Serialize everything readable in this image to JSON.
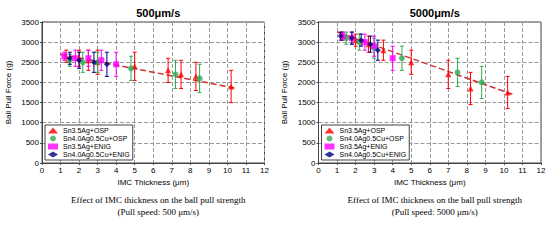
{
  "chart_data": [
    {
      "type": "scatter",
      "title": "500μm/s",
      "caption": [
        "Effect of IMC thickness on the ball pull strength",
        "(Pull speed: 500 μm/s)"
      ],
      "xlabel": "IMC Thickness (μm)",
      "ylabel": "Ball Pull Force (g)",
      "xlim": [
        0,
        12
      ],
      "xticks": [
        0,
        1,
        2,
        3,
        4,
        5,
        6,
        7,
        8,
        9,
        10,
        11,
        12
      ],
      "ylim": [
        0,
        3500
      ],
      "yticks": [
        0,
        500,
        1000,
        1500,
        2000,
        2500,
        3000,
        3500
      ],
      "grid": true,
      "legend": "lower left",
      "series": [
        {
          "name": "Sn3.5Ag+OSP",
          "color": "#ff0000",
          "marker": "triangle",
          "x": [
            1.3,
            2.0,
            2.5,
            3.0,
            5.0,
            6.8,
            7.5,
            8.3,
            10.2
          ],
          "values": [
            2650,
            2600,
            2550,
            2500,
            2400,
            2300,
            2200,
            2150,
            1900
          ],
          "errors": [
            150,
            200,
            250,
            300,
            350,
            300,
            350,
            350,
            400
          ]
        },
        {
          "name": "Sn4.0Ag0.5Cu+OSP",
          "color": "#33aa55",
          "marker": "circle",
          "x": [
            1.5,
            2.2,
            3.0,
            4.8,
            7.2,
            8.5
          ],
          "values": [
            2550,
            2500,
            2500,
            2350,
            2200,
            2100
          ],
          "errors": [
            150,
            250,
            250,
            300,
            350,
            350
          ]
        },
        {
          "name": "Sn3.5Ag+ENIG",
          "color": "#ff00ff",
          "marker": "square",
          "x": [
            1.2,
            1.8,
            2.5,
            3.2,
            4.0
          ],
          "values": [
            2650,
            2600,
            2600,
            2550,
            2450
          ],
          "errors": [
            100,
            200,
            200,
            250,
            300
          ]
        },
        {
          "name": "Sn4.0Ag0.5Cu+ENIG",
          "color": "#000080",
          "marker": "diamond",
          "x": [
            1.5,
            2.0,
            2.8,
            3.5
          ],
          "values": [
            2600,
            2550,
            2500,
            2450
          ],
          "errors": [
            150,
            200,
            250,
            300
          ]
        }
      ],
      "trend_line": {
        "x": [
          1.0,
          10.5
        ],
        "values": [
          2700,
          1850
        ],
        "color": "#cc3333",
        "line_style": "dashed"
      }
    },
    {
      "type": "scatter",
      "title": "5000μm/s",
      "caption": [
        "Effect of IMC thickness on the ball pull strength",
        "(Pull speed: 5000 μm/s)"
      ],
      "xlabel": "IMC Thickness (μm)",
      "ylabel": "Ball Pull Force (g)",
      "xlim": [
        0,
        12
      ],
      "xticks": [
        0,
        1,
        2,
        3,
        4,
        5,
        6,
        7,
        8,
        9,
        10,
        11,
        12
      ],
      "ylim": [
        0,
        3500
      ],
      "yticks": [
        0,
        500,
        1000,
        1500,
        2000,
        2500,
        3000,
        3500
      ],
      "grid": true,
      "legend": "lower left",
      "series": [
        {
          "name": "Sn3.5Ag+OSP",
          "color": "#ff0000",
          "marker": "triangle",
          "x": [
            1.3,
            2.0,
            2.7,
            3.5,
            5.0,
            7.0,
            8.2,
            10.2
          ],
          "values": [
            3150,
            3050,
            2950,
            2800,
            2500,
            2200,
            1850,
            1750
          ],
          "errors": [
            100,
            150,
            200,
            250,
            300,
            350,
            400,
            400
          ]
        },
        {
          "name": "Sn4.0Ag0.5Cu+OSP",
          "color": "#33aa55",
          "marker": "circle",
          "x": [
            1.5,
            2.2,
            3.0,
            4.5,
            7.5,
            8.8
          ],
          "values": [
            3100,
            3000,
            2850,
            2600,
            2250,
            2000
          ],
          "errors": [
            150,
            200,
            250,
            300,
            350,
            400
          ]
        },
        {
          "name": "Sn3.5Ag+ENIG",
          "color": "#ff00ff",
          "marker": "square",
          "x": [
            1.3,
            1.8,
            2.5,
            3.0,
            4.0
          ],
          "values": [
            3150,
            3100,
            3000,
            2900,
            2600
          ],
          "errors": [
            100,
            150,
            200,
            250,
            300
          ]
        },
        {
          "name": "Sn4.0Ag0.5Cu+ENIG",
          "color": "#000080",
          "marker": "diamond",
          "x": [
            1.2,
            1.8,
            2.3,
            2.8,
            3.2
          ],
          "values": [
            3150,
            3100,
            3050,
            2950,
            2800
          ],
          "errors": [
            100,
            150,
            150,
            200,
            250
          ]
        }
      ],
      "trend_line": {
        "x": [
          1.0,
          10.5
        ],
        "values": [
          3250,
          1700
        ],
        "color": "#cc3333",
        "line_style": "dashed"
      }
    }
  ]
}
